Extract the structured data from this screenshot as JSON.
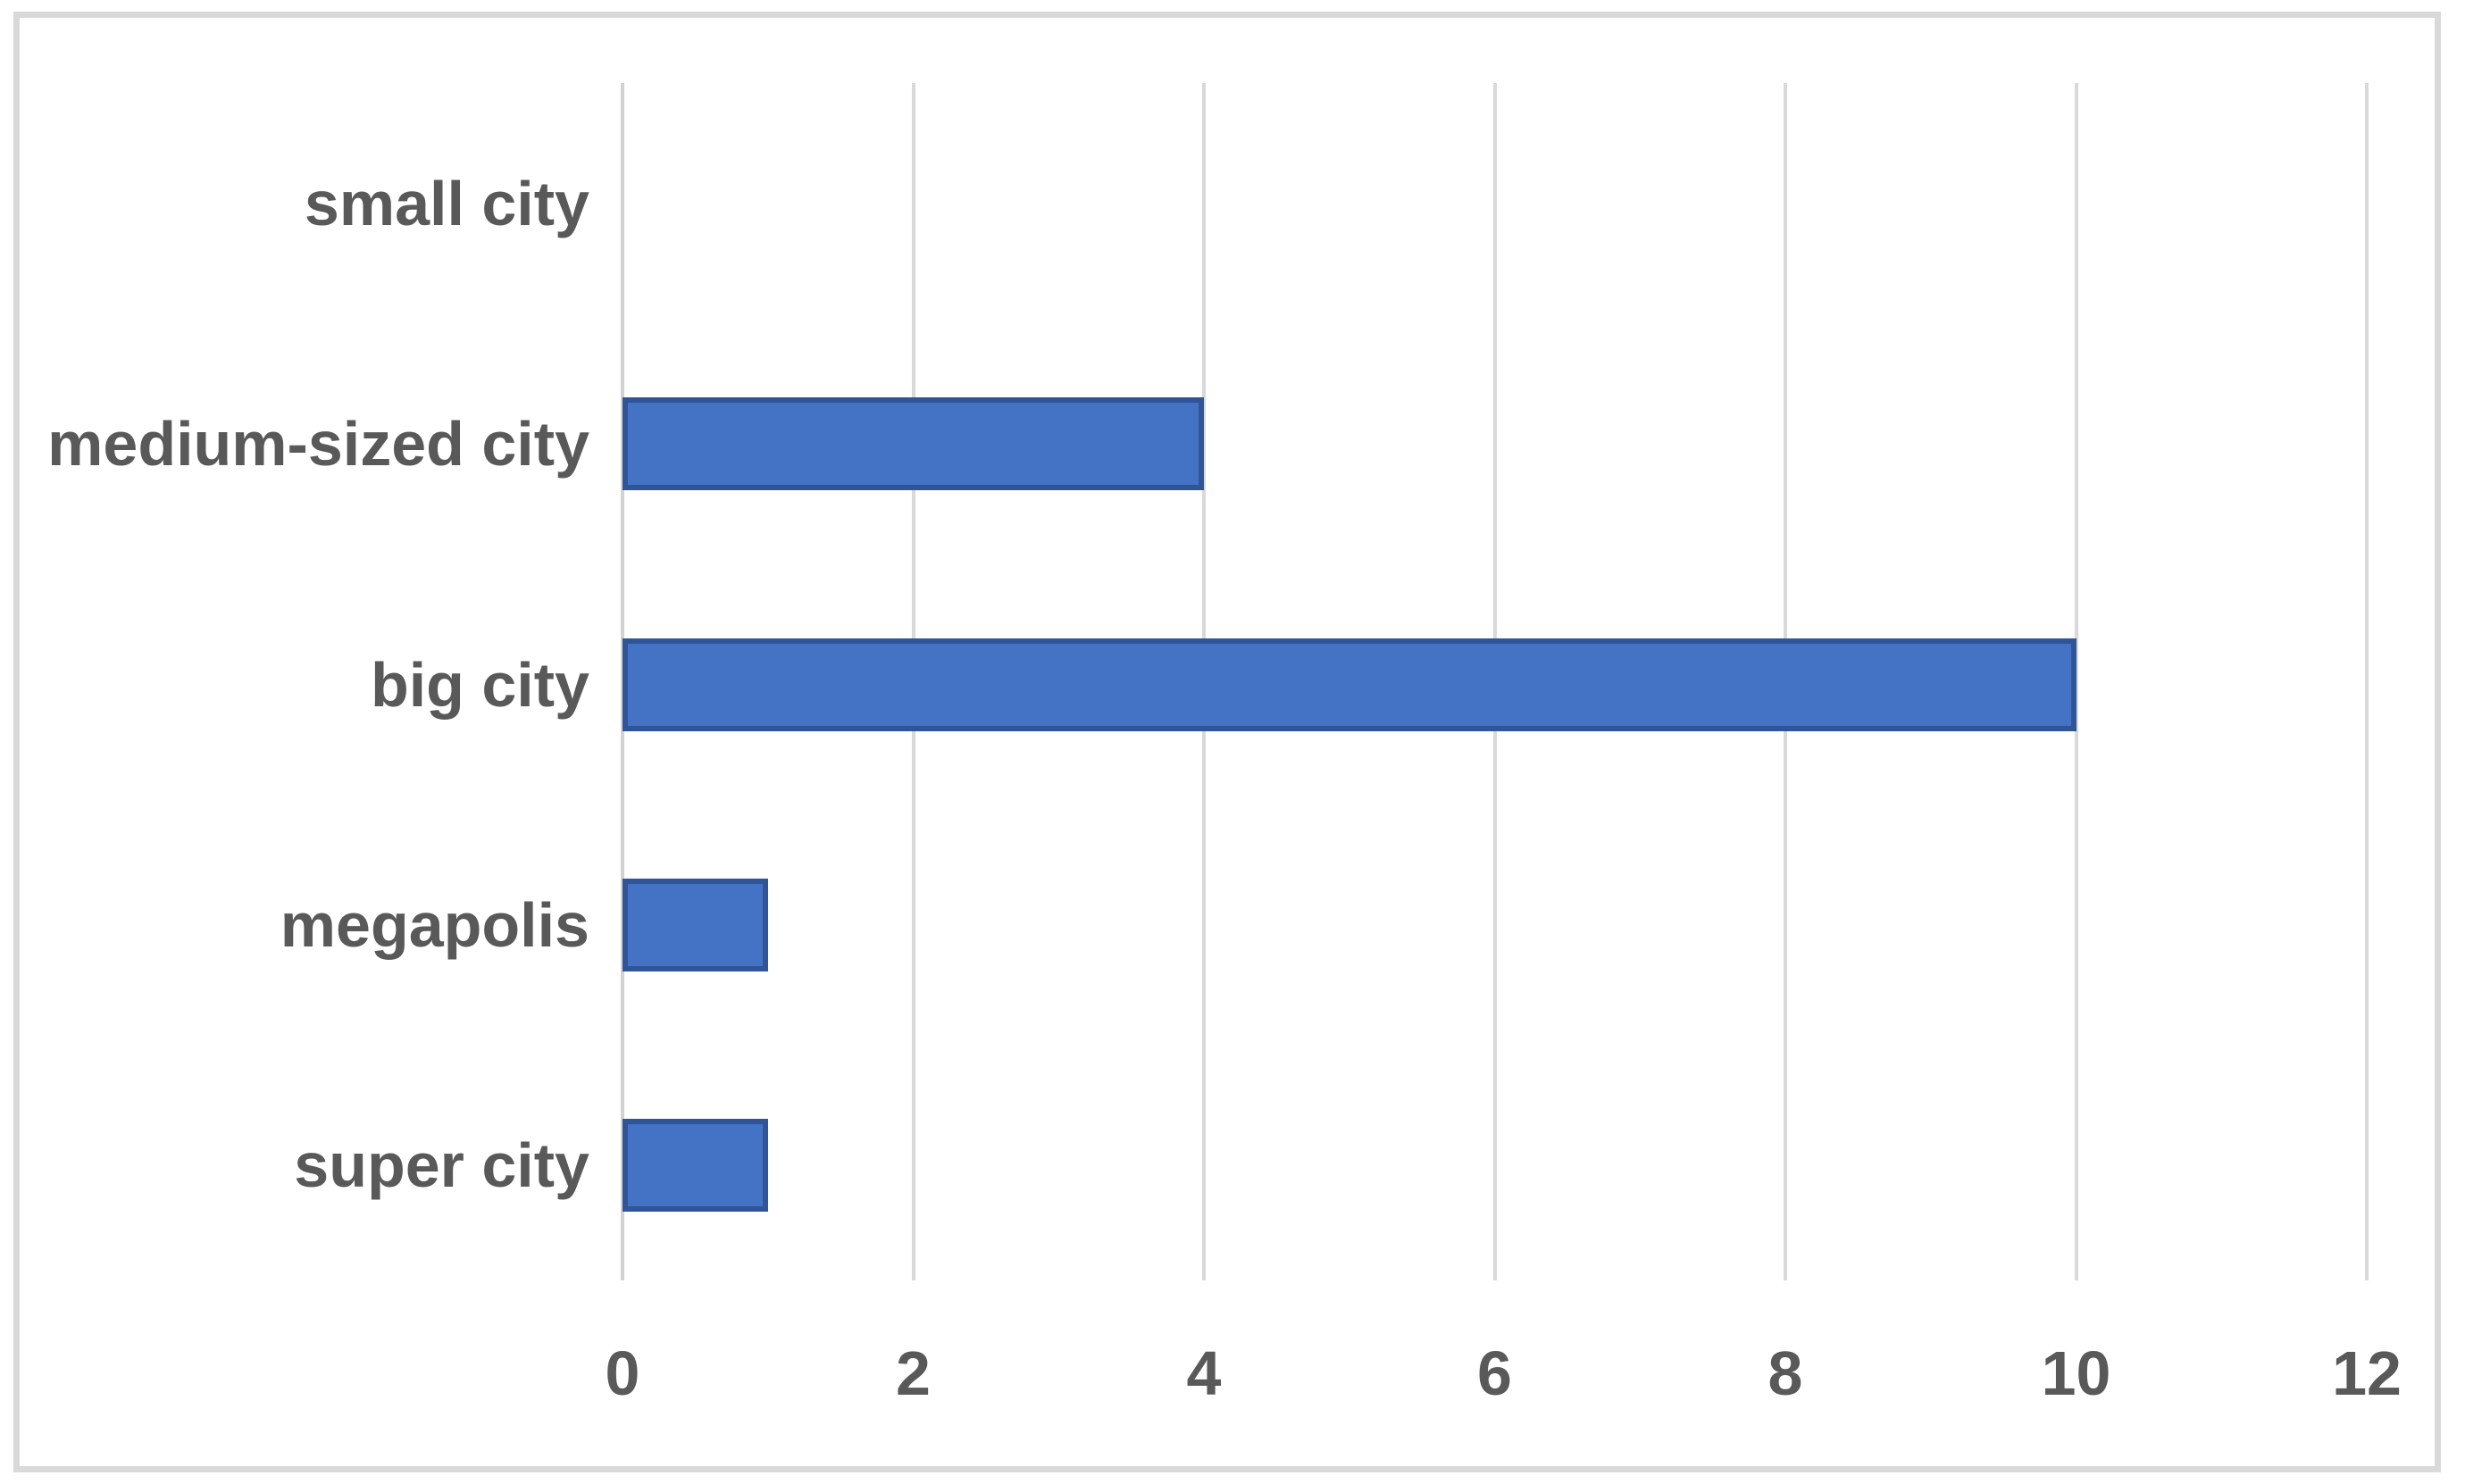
{
  "chart_data": {
    "type": "bar",
    "orientation": "horizontal",
    "title": "",
    "xlabel": "",
    "ylabel": "",
    "categories": [
      "small city",
      "medium-sized city",
      "big city",
      "megapolis",
      "super city"
    ],
    "values": [
      0,
      4,
      10,
      1,
      1
    ],
    "xlim": [
      0,
      12
    ],
    "xticks": [
      0,
      2,
      4,
      6,
      8,
      10,
      12
    ],
    "grid": "vertical-gridlines-on",
    "legend": "none",
    "colors": {
      "bar_fill": "#4472C4",
      "bar_border": "#2F5597",
      "gridline": "#D9D9D9",
      "axis_line": "#D2D2D2",
      "label_text": "#595959",
      "chart_frame": "#D9D9D9",
      "background": "#FFFFFF"
    }
  }
}
